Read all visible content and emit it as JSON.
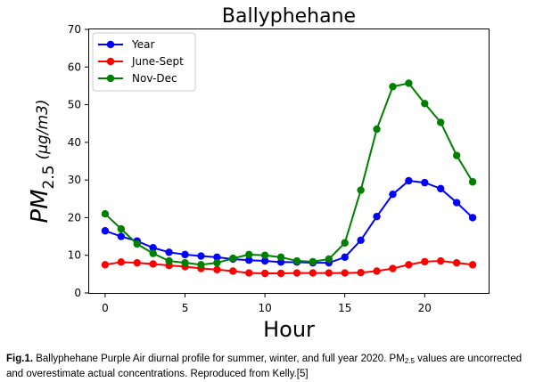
{
  "chart_data": {
    "type": "line",
    "title": "Ballyphehane",
    "xlabel": "Hour",
    "ylabel": {
      "base": "PM",
      "sub": "2.5",
      "unit": "(μg/m3)"
    },
    "xlim": [
      -1,
      24
    ],
    "ylim": [
      0,
      70
    ],
    "xticks": [
      0,
      5,
      10,
      15,
      20
    ],
    "yticks": [
      0,
      10,
      20,
      30,
      40,
      50,
      60,
      70
    ],
    "legend_position": "top-left",
    "x": [
      0,
      1,
      2,
      3,
      4,
      5,
      6,
      7,
      8,
      9,
      10,
      11,
      12,
      13,
      14,
      15,
      16,
      17,
      18,
      19,
      20,
      21,
      22,
      23
    ],
    "series": [
      {
        "name": "Year",
        "color": "#0000ff",
        "values": [
          16.5,
          15.0,
          13.8,
          12.0,
          10.8,
          10.2,
          9.8,
          9.5,
          9.0,
          8.7,
          8.5,
          8.2,
          8.2,
          8.0,
          8.0,
          9.5,
          14.0,
          20.3,
          26.2,
          29.8,
          29.3,
          27.7,
          24.0,
          20.0
        ]
      },
      {
        "name": "June-Sept",
        "color": "#ff0000",
        "values": [
          7.5,
          8.2,
          8.0,
          7.7,
          7.3,
          7.0,
          6.5,
          6.2,
          5.8,
          5.3,
          5.2,
          5.2,
          5.3,
          5.3,
          5.3,
          5.3,
          5.4,
          5.8,
          6.5,
          7.5,
          8.3,
          8.5,
          8.0,
          7.5
        ]
      },
      {
        "name": "Nov-Dec",
        "color": "#008000",
        "values": [
          21.0,
          17.0,
          13.0,
          10.5,
          8.5,
          8.0,
          7.5,
          8.0,
          9.2,
          10.2,
          10.0,
          9.5,
          8.5,
          8.3,
          9.0,
          13.3,
          27.3,
          43.5,
          54.8,
          55.7,
          50.3,
          45.3,
          36.5,
          29.5
        ]
      }
    ]
  },
  "caption": {
    "label": "Fig.1.",
    "text_before": " Ballyphehane Purple Air diurnal profile for summer, winter, and full year 2020. PM",
    "sub": "2.5",
    "text_after": " values are uncorrected and overestimate actual concentrations. Reproduced from Kelly.[5]"
  }
}
